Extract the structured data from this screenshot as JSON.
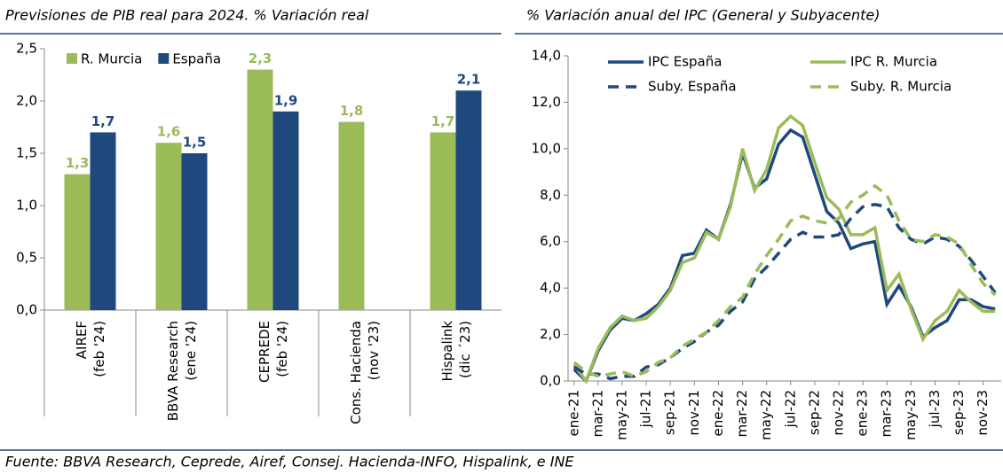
{
  "chart_data": [
    {
      "type": "bar",
      "title": "Previsiones de PIB real para 2024. % Variación real",
      "categories": [
        [
          "AIREF",
          "(feb '24)"
        ],
        [
          "BBVA Research",
          "(ene '24)"
        ],
        [
          "CEPREDE",
          "(feb '24)"
        ],
        [
          "Cons. Hacienda",
          "(nov '23)"
        ],
        [
          "Hispalink",
          "(dic ´23)"
        ]
      ],
      "series": [
        {
          "name": "R. Murcia",
          "color": "#9bbb59",
          "values": [
            1.3,
            1.6,
            2.3,
            1.8,
            1.7
          ],
          "value_labels": [
            "1,3",
            "1,6",
            "2,3",
            "1,8",
            "1,7"
          ]
        },
        {
          "name": "España",
          "color": "#1f497d",
          "values": [
            1.7,
            1.5,
            1.9,
            null,
            2.1
          ],
          "value_labels": [
            "1,7",
            "1,5",
            "1,9",
            null,
            "2,1"
          ]
        }
      ],
      "ylim": [
        0,
        2.5
      ],
      "yticks": [
        {
          "value": 0,
          "label": "0,0"
        },
        {
          "value": 0.5,
          "label": "0,5"
        },
        {
          "value": 1,
          "label": "1,0"
        },
        {
          "value": 1.5,
          "label": "1,5"
        },
        {
          "value": 2,
          "label": "2,0"
        },
        {
          "value": 2.5,
          "label": "2,5"
        }
      ],
      "grid": false,
      "legend": "top-left"
    },
    {
      "type": "line",
      "title": "% Variación anual del IPC (General y Subyacente)",
      "categories": [
        "ene-21",
        null,
        "mar-21",
        null,
        "may-21",
        null,
        "jul-21",
        null,
        "sep-21",
        null,
        "nov-21",
        null,
        "ene-22",
        null,
        "mar-22",
        null,
        "may-22",
        null,
        "jul-22",
        null,
        "sep-22",
        null,
        "nov-22",
        null,
        "ene-23",
        null,
        "mar-23",
        null,
        "may-23",
        null,
        "jul-23",
        null,
        "sep-23",
        null,
        "nov-23",
        null
      ],
      "series": [
        {
          "name": "IPC España",
          "color": "#1f497d",
          "dash": false,
          "values": [
            0.5,
            0.0,
            1.3,
            2.2,
            2.7,
            2.6,
            2.9,
            3.3,
            4.0,
            5.4,
            5.5,
            6.5,
            6.1,
            7.6,
            9.8,
            8.3,
            8.7,
            10.2,
            10.8,
            10.5,
            8.9,
            7.3,
            6.8,
            5.7,
            5.9,
            6.0,
            3.3,
            4.1,
            3.2,
            1.9,
            2.3,
            2.6,
            3.5,
            3.5,
            3.2,
            3.1
          ]
        },
        {
          "name": "IPC R. Murcia",
          "color": "#9bbb59",
          "dash": false,
          "values": [
            0.7,
            0.0,
            1.4,
            2.3,
            2.8,
            2.6,
            2.7,
            3.2,
            3.9,
            5.1,
            5.3,
            6.4,
            6.1,
            7.5,
            10.0,
            8.2,
            9.1,
            10.9,
            11.4,
            11.0,
            9.4,
            7.9,
            7.4,
            6.3,
            6.3,
            6.6,
            3.9,
            4.6,
            3.1,
            1.8,
            2.6,
            3.0,
            3.9,
            3.4,
            3.0,
            3.0
          ]
        },
        {
          "name": "Suby. España",
          "color": "#1f497d",
          "dash": true,
          "values": [
            0.6,
            0.3,
            0.3,
            0.1,
            0.2,
            0.2,
            0.6,
            0.7,
            1.0,
            1.4,
            1.7,
            2.1,
            2.4,
            3.0,
            3.4,
            4.4,
            4.9,
            5.5,
            6.1,
            6.4,
            6.2,
            6.2,
            6.3,
            7.0,
            7.5,
            7.6,
            7.5,
            6.6,
            6.1,
            5.9,
            6.2,
            6.1,
            5.8,
            5.2,
            4.5,
            3.8
          ]
        },
        {
          "name": "Suby. R. Murcia",
          "color": "#9bbb59",
          "dash": true,
          "values": [
            0.8,
            0.4,
            0.2,
            0.3,
            0.4,
            0.2,
            0.4,
            0.8,
            1.0,
            1.5,
            1.8,
            2.1,
            2.6,
            3.2,
            3.6,
            4.6,
            5.4,
            6.1,
            6.9,
            7.1,
            6.9,
            6.8,
            7.0,
            7.7,
            8.0,
            8.4,
            8.0,
            6.9,
            6.1,
            6.0,
            6.3,
            6.2,
            5.9,
            5.0,
            4.2,
            3.7
          ]
        }
      ],
      "ylim": [
        0,
        14
      ],
      "yticks": [
        {
          "value": 0,
          "label": "0,0"
        },
        {
          "value": 2,
          "label": "2,0"
        },
        {
          "value": 4,
          "label": "4,0"
        },
        {
          "value": 6,
          "label": "6,0"
        },
        {
          "value": 8,
          "label": "8,0"
        },
        {
          "value": 10,
          "label": "10,0"
        },
        {
          "value": 12,
          "label": "12,0"
        },
        {
          "value": 14,
          "label": "14,0"
        }
      ],
      "grid": false,
      "legend": "top"
    }
  ],
  "source": "Fuente: BBVA Research, Ceprede, Airef, Consej. Hacienda-INFO, Hispalink, e INE"
}
